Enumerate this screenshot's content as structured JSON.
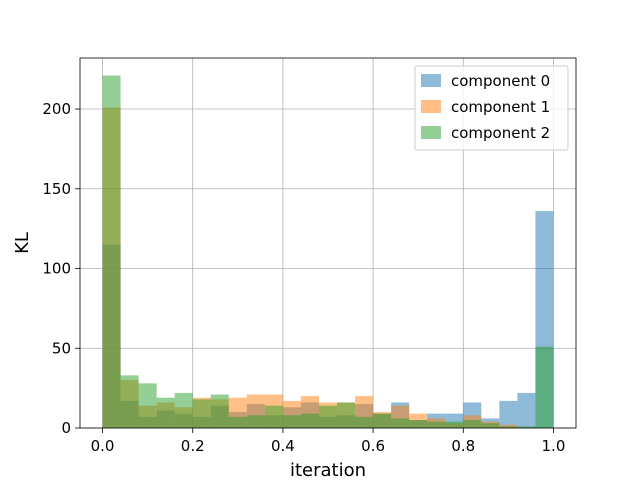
{
  "chart_data": {
    "type": "bar",
    "title": "",
    "xlabel": "iteration",
    "ylabel": "KL",
    "xlim": [
      -0.05,
      1.05
    ],
    "ylim": [
      0,
      232
    ],
    "xticks": [
      "0.0",
      "0.2",
      "0.4",
      "0.6",
      "0.8",
      "1.0"
    ],
    "yticks": [
      "0",
      "50",
      "100",
      "150",
      "200"
    ],
    "grid": true,
    "legend_position": "top-right",
    "bins": {
      "start": 0.0,
      "end": 1.0,
      "count": 25
    },
    "series": [
      {
        "name": "component 0",
        "color": "#1f77b4",
        "values": [
          115,
          17,
          7,
          11,
          9,
          7,
          14,
          10,
          15,
          8,
          13,
          16,
          7,
          8,
          15,
          9,
          16,
          5,
          9,
          9,
          16,
          6,
          17,
          22,
          136
        ]
      },
      {
        "name": "component 1",
        "color": "#ff7f0e",
        "values": [
          201,
          30,
          14,
          16,
          13,
          19,
          18,
          19,
          21,
          21,
          17,
          20,
          16,
          16,
          20,
          10,
          14,
          9,
          6,
          3,
          8,
          4,
          2,
          0,
          0
        ]
      },
      {
        "name": "component 2",
        "color": "#2ca02c",
        "values": [
          221,
          33,
          28,
          19,
          22,
          18,
          21,
          7,
          8,
          14,
          8,
          9,
          14,
          16,
          7,
          9,
          6,
          5,
          4,
          4,
          5,
          3,
          1,
          1,
          51
        ]
      }
    ]
  }
}
